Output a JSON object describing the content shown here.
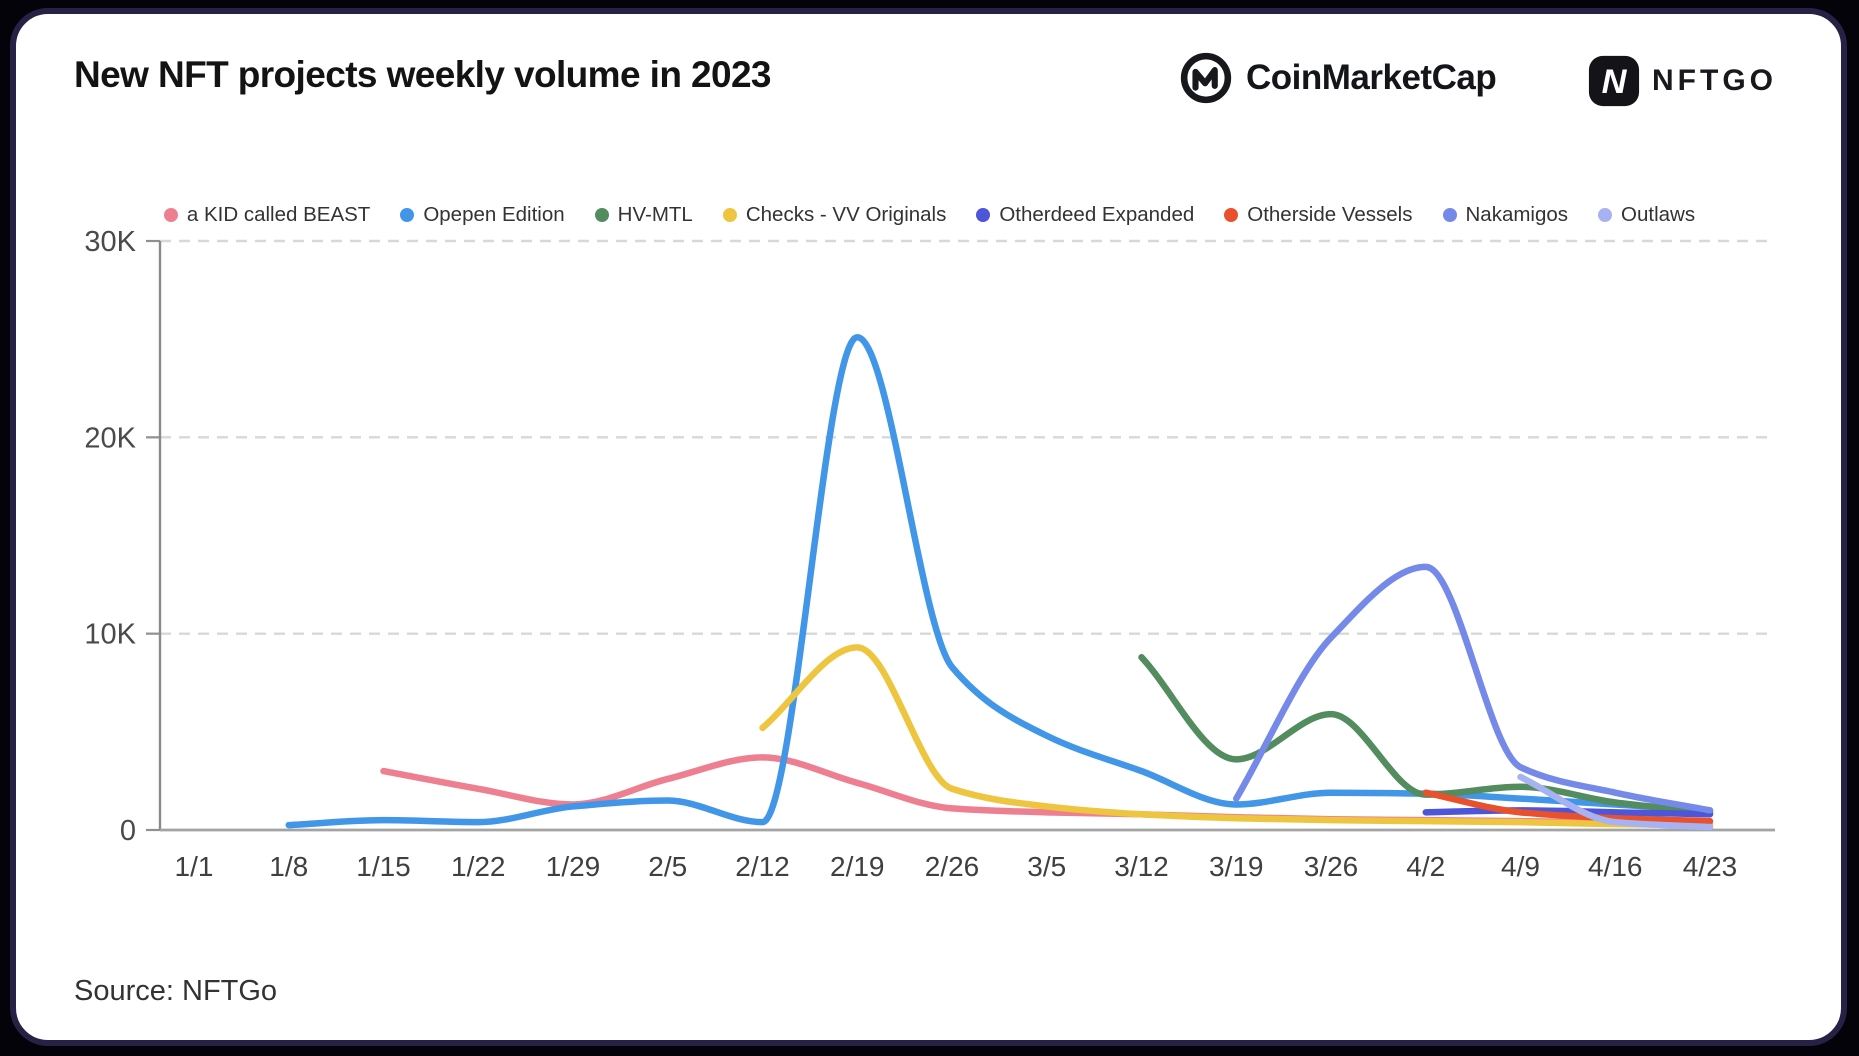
{
  "page": {
    "title": "New NFT projects weekly volume in 2023",
    "source": "Source: NFTGo",
    "logos": {
      "coinmarketcap_wordmark": "CoinMarketCap",
      "nftgo_wordmark": "NFTGO",
      "nftgo_icon_letter": "N"
    }
  },
  "chart_data": {
    "type": "line",
    "title": "New NFT projects weekly volume in 2023",
    "xlabel": "",
    "ylabel": "",
    "categories": [
      "1/1",
      "1/8",
      "1/15",
      "1/22",
      "1/29",
      "2/5",
      "2/12",
      "2/19",
      "2/26",
      "3/5",
      "3/12",
      "3/19",
      "3/26",
      "4/2",
      "4/9",
      "4/16",
      "4/23"
    ],
    "yticks": [
      "0",
      "10K",
      "20K",
      "30K"
    ],
    "ylim": [
      0,
      30000
    ],
    "values_unit": "thousands",
    "grid": "horizontal-dashed",
    "legend_position": "top-center",
    "line_style": "smooth-rounded",
    "axis_color": "#8a8a8a",
    "gridline_color": "#d8d8d8",
    "series": [
      {
        "name": "a KID called BEAST",
        "color": "#ee7f91",
        "start_index": 2,
        "values": [
          3.0,
          2.1,
          1.3,
          2.6,
          3.7,
          2.4,
          1.1,
          0.9,
          0.8,
          0.65,
          0.55,
          0.5,
          0.45,
          0.4,
          0.3
        ]
      },
      {
        "name": "Opepen Edition",
        "color": "#4196e8",
        "start_index": 1,
        "values": [
          0.25,
          0.5,
          0.4,
          1.2,
          1.5,
          0.4,
          25.1,
          8.3,
          4.8,
          3.0,
          1.3,
          1.9,
          1.85,
          1.6,
          1.3,
          1.0
        ]
      },
      {
        "name": "HV-MTL",
        "color": "#538c5e",
        "start_index": 10,
        "values": [
          8.8,
          3.6,
          5.9,
          1.8,
          2.2,
          1.4,
          0.9
        ]
      },
      {
        "name": "Checks - VV Originals",
        "color": "#eec53f",
        "start_index": 6,
        "values": [
          5.2,
          9.3,
          2.1,
          1.2,
          0.8,
          0.6,
          0.5,
          0.45,
          0.4,
          0.3,
          0.25
        ]
      },
      {
        "name": "Otherdeed Expanded",
        "color": "#4d55d8",
        "start_index": 13,
        "values": [
          0.9,
          1.0,
          0.9,
          0.8
        ]
      },
      {
        "name": "Otherside Vessels",
        "color": "#e8512b",
        "start_index": 13,
        "values": [
          1.9,
          0.9,
          0.6,
          0.45
        ]
      },
      {
        "name": "Nakamigos",
        "color": "#7589e8",
        "start_index": 11,
        "values": [
          1.6,
          9.8,
          13.4,
          3.2,
          1.9,
          1.0
        ]
      },
      {
        "name": "Outlaws",
        "color": "#a6b2f2",
        "start_index": 14,
        "values": [
          2.7,
          0.4,
          0.15
        ]
      }
    ]
  }
}
